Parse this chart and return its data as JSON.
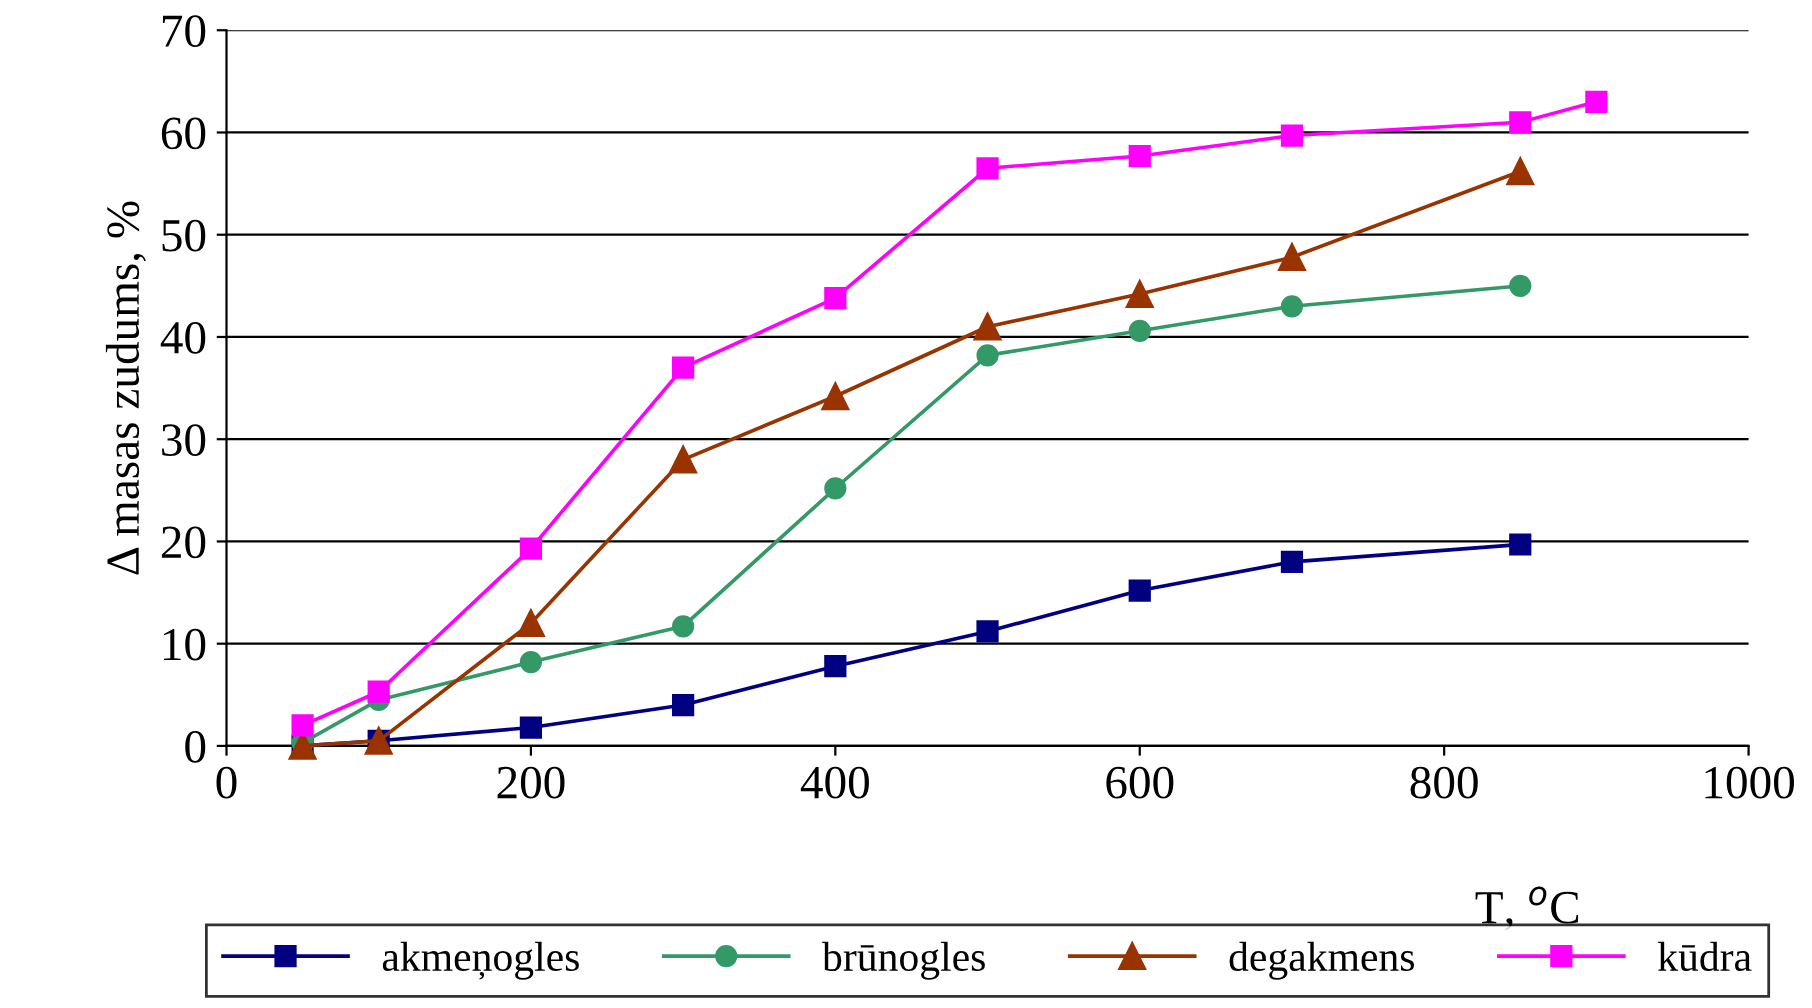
{
  "chart_data": {
    "type": "line",
    "xlabel": "T, $^{o}$C",
    "ylabel": "Δ masas zudums, %",
    "xlim": [
      0,
      1000
    ],
    "xticks": [
      0,
      200,
      400,
      600,
      800,
      1000
    ],
    "ylim": [
      0,
      70
    ],
    "yticks": [
      0,
      10,
      20,
      30,
      40,
      50,
      60,
      70
    ],
    "grid": "y",
    "legend": "bottom",
    "line_style": "solid",
    "series": [
      {
        "name": "akmeņogles",
        "color": "#000080",
        "marker": "square",
        "x": [
          50,
          100,
          200,
          300,
          400,
          500,
          600,
          700,
          850
        ],
        "values": [
          0,
          0.5,
          1.8,
          4,
          7.8,
          11.2,
          15.2,
          18,
          19.7
        ]
      },
      {
        "name": "brūnogles",
        "color": "#339966",
        "marker": "circle",
        "x": [
          50,
          100,
          200,
          300,
          400,
          500,
          600,
          700,
          850
        ],
        "values": [
          0.3,
          4.5,
          8.2,
          11.7,
          25.2,
          38.2,
          40.6,
          43,
          45
        ]
      },
      {
        "name": "degakmens",
        "color": "#993300",
        "marker": "triangle",
        "x": [
          50,
          100,
          200,
          300,
          400,
          500,
          600,
          700,
          850
        ],
        "values": [
          0,
          0.5,
          12,
          28,
          34.2,
          41,
          44.2,
          47.8,
          56.2
        ]
      },
      {
        "name": "kūdra",
        "color": "#ff00ff",
        "marker": "square",
        "x": [
          50,
          100,
          200,
          300,
          400,
          500,
          600,
          700,
          850,
          900
        ],
        "values": [
          2,
          5.3,
          19.3,
          37,
          43.8,
          56.5,
          57.7,
          59.7,
          61,
          63
        ]
      }
    ]
  }
}
